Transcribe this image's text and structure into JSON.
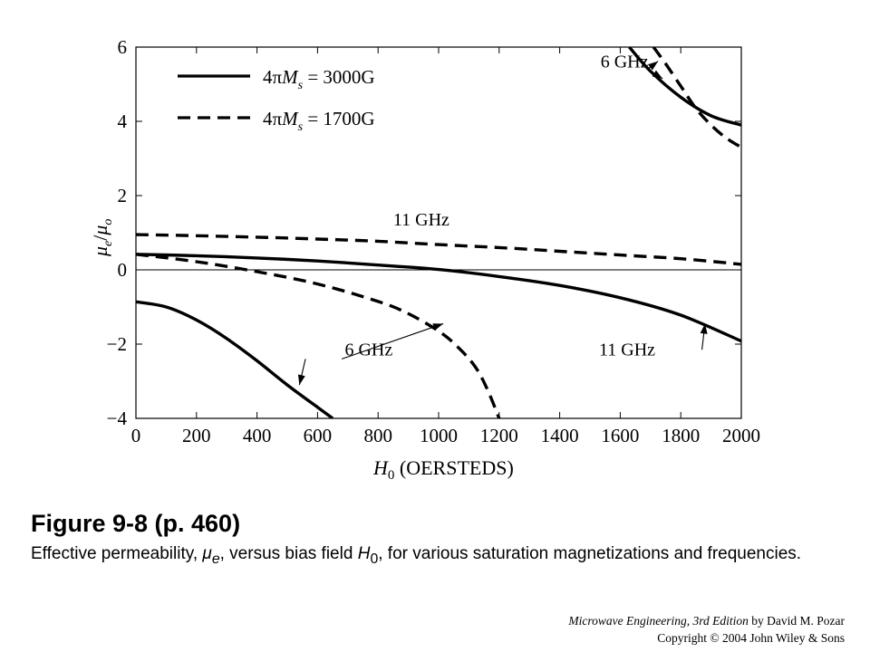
{
  "chart_data": {
    "type": "line",
    "x_ticks": [
      0,
      200,
      400,
      600,
      800,
      1000,
      1200,
      1400,
      1600,
      1800,
      2000
    ],
    "y_ticks": [
      6,
      4,
      2,
      0,
      -2,
      -4
    ],
    "xlim": [
      0,
      2000
    ],
    "ylim": [
      -4,
      6
    ],
    "xlabel": "H0 (OERSTEDS)",
    "xlabel_parts": {
      "symbol": "H",
      "sub": "0",
      "rest": " (OERSTEDS)"
    },
    "ylabel": "μe/μo",
    "ylabel_parts": {
      "m1": "μ",
      "s1": "e",
      "slash": "/",
      "m2": "μ",
      "s2": "o"
    },
    "zero_line": true,
    "legend_placement": "top-left",
    "legend": [
      {
        "style": "solid",
        "prefix": "4π",
        "sym": "M",
        "sub": "s",
        "rest": " = 3000G"
      },
      {
        "style": "dashed",
        "prefix": "4π",
        "sym": "M",
        "sub": "s",
        "rest": " = 1700G"
      }
    ],
    "series": [
      {
        "name": "4πMs = 3000G, 6 GHz",
        "style": "solid",
        "branch": "lower",
        "x": [
          0,
          100,
          200,
          300,
          400,
          500,
          600,
          650
        ],
        "y": [
          -0.86,
          -1.0,
          -1.35,
          -1.85,
          -2.45,
          -3.1,
          -3.7,
          -4.0
        ]
      },
      {
        "name": "4πMs = 3000G, 6 GHz",
        "style": "solid",
        "branch": "upper",
        "x": [
          1630,
          1700,
          1800,
          1900,
          2000
        ],
        "y": [
          6.0,
          5.35,
          4.65,
          4.15,
          3.9
        ]
      },
      {
        "name": "4πMs = 3000G, 11 GHz",
        "style": "solid",
        "x": [
          0,
          200,
          400,
          600,
          800,
          1000,
          1200,
          1400,
          1600,
          1800,
          2000
        ],
        "y": [
          0.42,
          0.38,
          0.32,
          0.24,
          0.13,
          0.01,
          -0.18,
          -0.42,
          -0.75,
          -1.22,
          -1.92
        ]
      },
      {
        "name": "4πMs = 1700G, 6 GHz",
        "style": "dashed",
        "branch": "lower",
        "x": [
          0,
          200,
          400,
          600,
          800,
          900,
          1000,
          1060,
          1120,
          1160,
          1200
        ],
        "y": [
          0.42,
          0.22,
          -0.05,
          -0.38,
          -0.85,
          -1.18,
          -1.65,
          -2.05,
          -2.6,
          -3.2,
          -4.0
        ]
      },
      {
        "name": "4πMs = 1700G, 6 GHz",
        "style": "dashed",
        "branch": "upper",
        "x": [
          1710,
          1750,
          1800,
          1850,
          1900,
          1950,
          2000
        ],
        "y": [
          6.0,
          5.55,
          4.95,
          4.35,
          3.9,
          3.55,
          3.3
        ]
      },
      {
        "name": "4πMs = 1700G, 11 GHz",
        "style": "dashed",
        "x": [
          0,
          200,
          400,
          600,
          800,
          1000,
          1200,
          1400,
          1600,
          1800,
          2000
        ],
        "y": [
          0.95,
          0.92,
          0.88,
          0.83,
          0.77,
          0.68,
          0.6,
          0.5,
          0.4,
          0.3,
          0.15
        ]
      }
    ],
    "annotations": [
      {
        "text": "6 GHz",
        "x": 1535,
        "y": 5.45,
        "arrows": [
          [
            1690,
            5.4,
            1725,
            5.62
          ],
          [
            1690,
            5.4,
            1740,
            5.15
          ]
        ]
      },
      {
        "text": "11 GHz",
        "x": 850,
        "y": 1.2,
        "arrows": []
      },
      {
        "text": "6 GHz",
        "x": 690,
        "y": -2.3,
        "arrows": [
          [
            680,
            -2.4,
            1015,
            -1.45
          ],
          [
            560,
            -2.4,
            540,
            -3.1
          ]
        ]
      },
      {
        "text": "11 GHz",
        "x": 1530,
        "y": -2.3,
        "arrows": [
          [
            1870,
            -2.15,
            1880,
            -1.45
          ]
        ]
      }
    ]
  },
  "caption": {
    "title": "Figure 9-8  (p. 460)",
    "body_1": "Effective permeability, ",
    "mu": "μ",
    "mu_sub": "e",
    "body_2": ", versus bias field ",
    "h": "H",
    "h_sub": "0",
    "body_3": ", for various saturation magnetizations and frequencies."
  },
  "credit": {
    "book": "Microwave Engineering, 3rd Edition",
    "author": " by David M. Pozar",
    "copyright": "Copyright © 2004 John Wiley & Sons"
  }
}
